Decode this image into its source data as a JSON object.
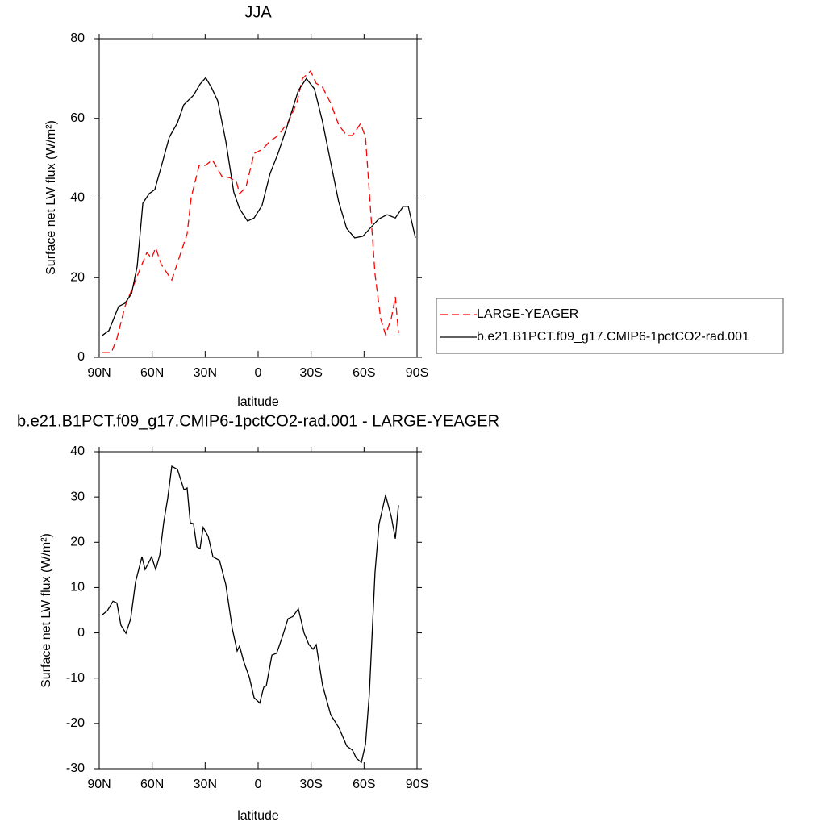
{
  "chart_data": [
    {
      "type": "line",
      "title": "JJA",
      "xlabel": "latitude",
      "ylabel": "Surface net LW flux (W/m²)",
      "xlim": [
        90,
        -90
      ],
      "ylim": [
        0,
        80
      ],
      "xticks": [
        {
          "value": 90,
          "label": "90N"
        },
        {
          "value": 60,
          "label": "60N"
        },
        {
          "value": 30,
          "label": "30N"
        },
        0,
        {
          "value": -30,
          "label": "30S"
        },
        {
          "value": -60,
          "label": "60S"
        },
        {
          "value": -90,
          "label": "90S"
        }
      ],
      "yticks": [
        0,
        20,
        40,
        60,
        80
      ],
      "legend": "right",
      "series": [
        {
          "name": "LARGE-YEAGER",
          "color": "#ff0000",
          "line_style": "dashed",
          "x": [
            88.2,
            83.1,
            80.0,
            75.4,
            70.8,
            66.2,
            63.0,
            60.3,
            58.0,
            54.8,
            48.9,
            44.8,
            40.2,
            37.9,
            33.4,
            29.7,
            26.0,
            20.6,
            16.0,
            12.3,
            10.5,
            6.9,
            2.3,
            -2.3,
            -6.8,
            -11.4,
            -17.3,
            -21.9,
            -25.1,
            -29.7,
            -32.9,
            -36.5,
            -41.1,
            -45.7,
            -50.2,
            -53.4,
            -58.0,
            -60.8,
            -64.0,
            -66.2,
            -69.4,
            -72.2,
            -75.4,
            -77.7,
            -79.5
          ],
          "values": [
            1.2,
            1.2,
            4.7,
            12.8,
            17.8,
            22.9,
            26.3,
            24.9,
            27.5,
            23.3,
            19.4,
            24.9,
            31.0,
            40.1,
            48.2,
            48.2,
            49.6,
            45.5,
            45.1,
            44.1,
            41.1,
            42.7,
            51.2,
            52.2,
            54.3,
            55.7,
            59.3,
            63.8,
            70.0,
            71.9,
            68.8,
            67.8,
            63.8,
            58.3,
            55.7,
            55.7,
            58.7,
            55.3,
            35.0,
            20.9,
            9.7,
            5.7,
            9.7,
            15.2,
            6.1
          ]
        },
        {
          "name": "b.e21.B1PCT.f09_g17.CMIP6-1pctCO2-rad.001",
          "color": "#000000",
          "line_style": "solid",
          "x": [
            88.2,
            84.5,
            79.0,
            75.4,
            71.7,
            68.5,
            65.3,
            61.7,
            58.5,
            54.9,
            50.3,
            45.7,
            42.1,
            36.6,
            32.9,
            29.7,
            26.5,
            22.9,
            18.3,
            13.8,
            10.6,
            6.0,
            2.3,
            -2.2,
            -6.8,
            -11.3,
            -15.9,
            -22.8,
            -27.3,
            -31.9,
            -36.4,
            -41.0,
            -45.6,
            -50.1,
            -54.7,
            -59.3,
            -63.8,
            -68.5,
            -73.1,
            -77.7,
            -82.2,
            -85.0,
            -89.1
          ],
          "values": [
            5.5,
            6.7,
            12.8,
            13.6,
            16.0,
            22.9,
            38.7,
            41.1,
            42.1,
            47.8,
            55.3,
            58.9,
            63.4,
            65.8,
            68.6,
            70.2,
            67.8,
            64.4,
            54.3,
            41.5,
            37.4,
            34.2,
            35.0,
            38.1,
            46.2,
            51.2,
            57.3,
            67.0,
            70.0,
            67.4,
            59.3,
            49.2,
            39.1,
            32.4,
            30.0,
            30.4,
            32.6,
            34.8,
            35.8,
            35.0,
            37.9,
            37.9,
            30.0
          ]
        }
      ]
    },
    {
      "type": "line",
      "title": "b.e21.B1PCT.f09_g17.CMIP6-1pctCO2-rad.001 - LARGE-YEAGER",
      "xlabel": "latitude",
      "ylabel": "Surface net LW flux (W/m²)",
      "xlim": [
        90,
        -90
      ],
      "ylim": [
        -30,
        40
      ],
      "xticks": [
        {
          "value": 90,
          "label": "90N"
        },
        {
          "value": 60,
          "label": "60N"
        },
        {
          "value": 30,
          "label": "30N"
        },
        0,
        {
          "value": -30,
          "label": "30S"
        },
        {
          "value": -60,
          "label": "60S"
        },
        {
          "value": -90,
          "label": "90S"
        }
      ],
      "yticks": [
        -30,
        -20,
        -10,
        0,
        10,
        20,
        30,
        40
      ],
      "series": [
        {
          "color": "#000000",
          "line_style": "solid",
          "x": [
            88.2,
            85.4,
            82.2,
            80.0,
            77.7,
            74.9,
            72.2,
            69.4,
            65.8,
            64.0,
            60.3,
            58.0,
            55.7,
            53.5,
            51.2,
            48.9,
            45.7,
            42.0,
            40.2,
            38.4,
            36.6,
            34.7,
            32.9,
            31.1,
            28.3,
            25.6,
            21.9,
            18.3,
            14.6,
            11.9,
            10.5,
            8.2,
            5.0,
            2.3,
            -0.9,
            -3.2,
            -4.6,
            -7.8,
            -10.5,
            -13.7,
            -16.9,
            -19.6,
            -22.8,
            -26.0,
            -28.8,
            -31.1,
            -32.9,
            -36.5,
            -41.1,
            -45.7,
            -50.2,
            -53.4,
            -55.7,
            -58.5,
            -60.8,
            -63.0,
            -66.2,
            -68.5,
            -72.2,
            -75.4,
            -77.7,
            -79.5
          ],
          "values": [
            4.0,
            4.9,
            7.0,
            6.6,
            1.7,
            -0.1,
            3.1,
            11.3,
            16.8,
            14.0,
            16.8,
            14.0,
            17.2,
            24.3,
            29.7,
            36.8,
            36.1,
            31.6,
            32.0,
            24.3,
            24.1,
            19.0,
            18.6,
            23.3,
            21.3,
            16.8,
            16.0,
            10.7,
            0.9,
            -4.0,
            -2.9,
            -6.3,
            -9.8,
            -14.3,
            -15.5,
            -12.0,
            -11.7,
            -4.9,
            -4.5,
            -0.9,
            3.1,
            3.6,
            5.3,
            0.0,
            -2.6,
            -3.6,
            -2.6,
            -11.6,
            -18.1,
            -20.9,
            -25.0,
            -25.9,
            -27.7,
            -28.6,
            -24.6,
            -13.4,
            13.3,
            24.0,
            30.4,
            25.7,
            20.8,
            28.2
          ]
        }
      ]
    }
  ]
}
